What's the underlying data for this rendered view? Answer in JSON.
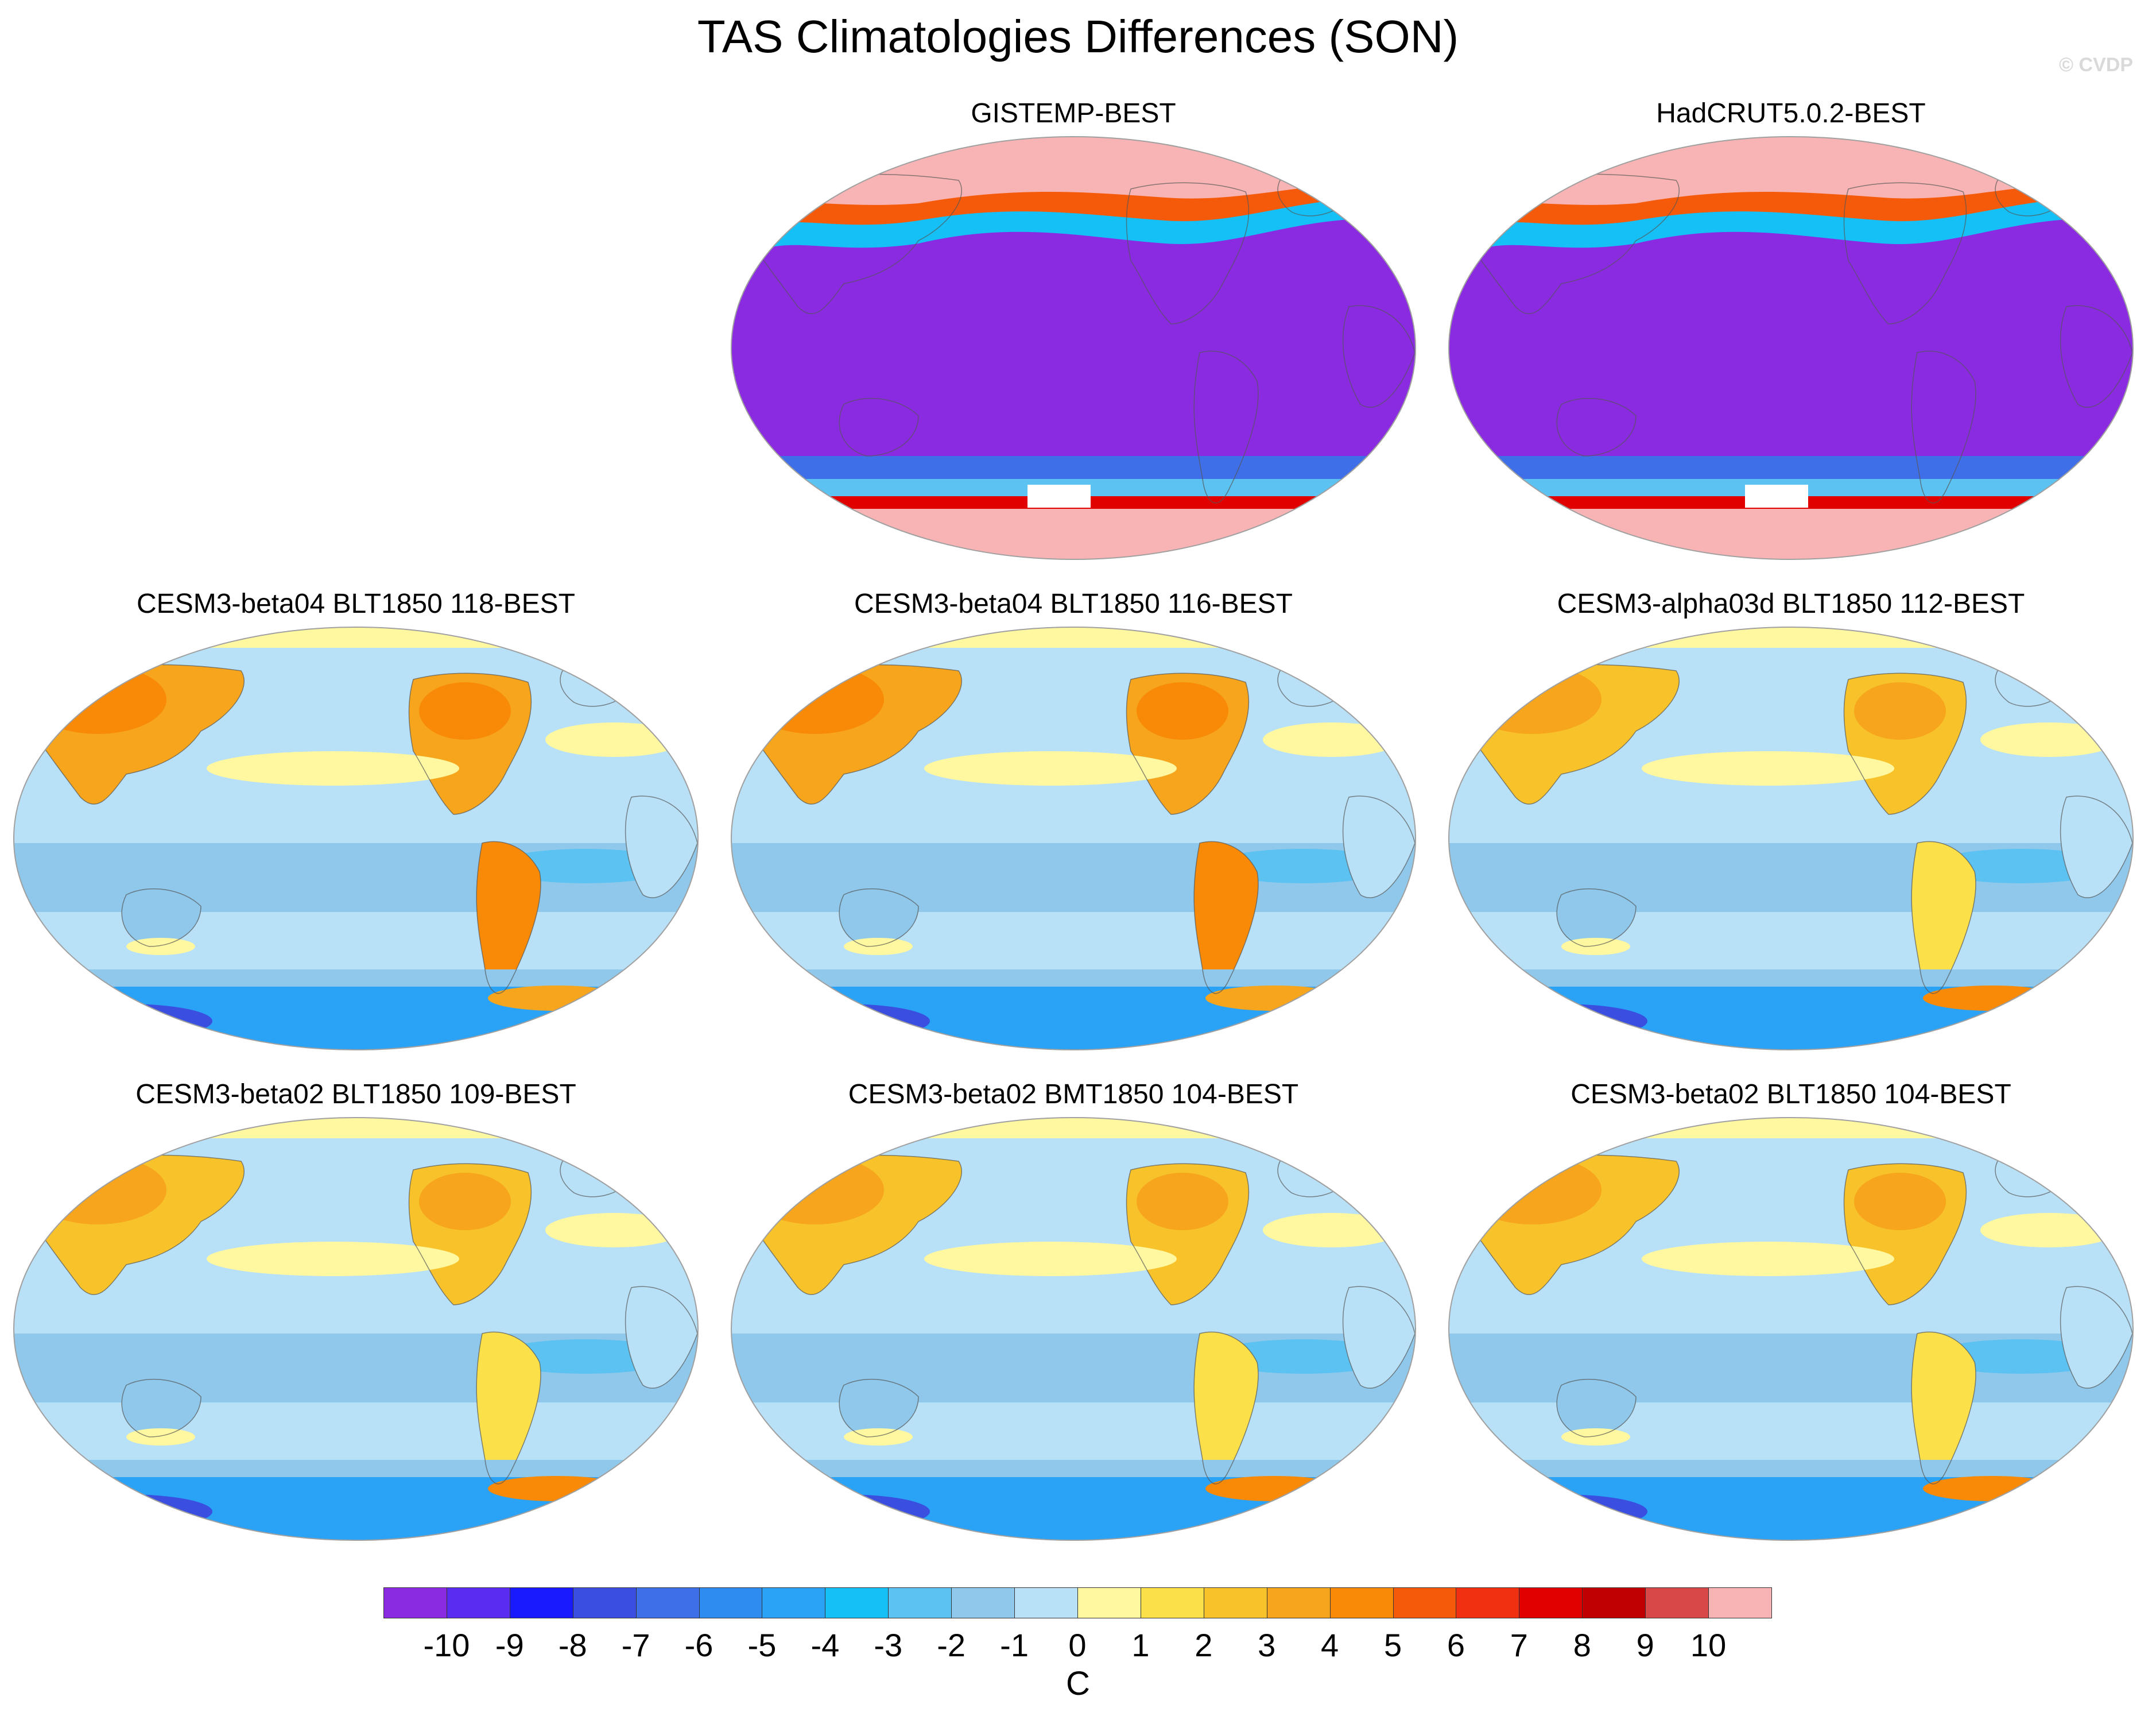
{
  "figure": {
    "title": "TAS Climatologies Differences (SON)",
    "copyright": "© CVDP"
  },
  "panels": [
    {
      "title": "GISTEMP-BEST",
      "kind": "obs_gistemp"
    },
    {
      "title": "HadCRUT5.0.2-BEST",
      "kind": "obs_hadcrut"
    },
    {
      "title": "CESM3-beta04 BLT1850 118-BEST",
      "kind": "model_warm"
    },
    {
      "title": "CESM3-beta04 BLT1850 116-BEST",
      "kind": "model_warm"
    },
    {
      "title": "CESM3-alpha03d BLT1850 112-BEST",
      "kind": "model_cool"
    },
    {
      "title": "CESM3-beta02 BLT1850 109-BEST",
      "kind": "model_cool"
    },
    {
      "title": "CESM3-beta02 BMT1850 104-BEST",
      "kind": "model_cool"
    },
    {
      "title": "CESM3-beta02 BLT1850 104-BEST",
      "kind": "model_cool"
    }
  ],
  "colorbar": {
    "colors": [
      "#8a2be2",
      "#5a2bf0",
      "#1a1aff",
      "#3a4fe0",
      "#3f6fe8",
      "#2e8bf0",
      "#2aa2f5",
      "#14c0f5",
      "#5cc2f2",
      "#8fc8ea",
      "#b8e0f6",
      "#fff8a0",
      "#fbe04a",
      "#f8c22a",
      "#f6a51c",
      "#f88a08",
      "#f55a0a",
      "#f03010",
      "#e00000",
      "#c00000",
      "#d84848",
      "#f8b4b4"
    ],
    "labels": [
      "-10",
      "-9",
      "-8",
      "-7",
      "-6",
      "-5",
      "-4",
      "-3",
      "-2",
      "-1",
      "0",
      "1",
      "2",
      "3",
      "4",
      "5",
      "6",
      "7",
      "8",
      "9",
      "10"
    ],
    "unit": "C"
  }
}
